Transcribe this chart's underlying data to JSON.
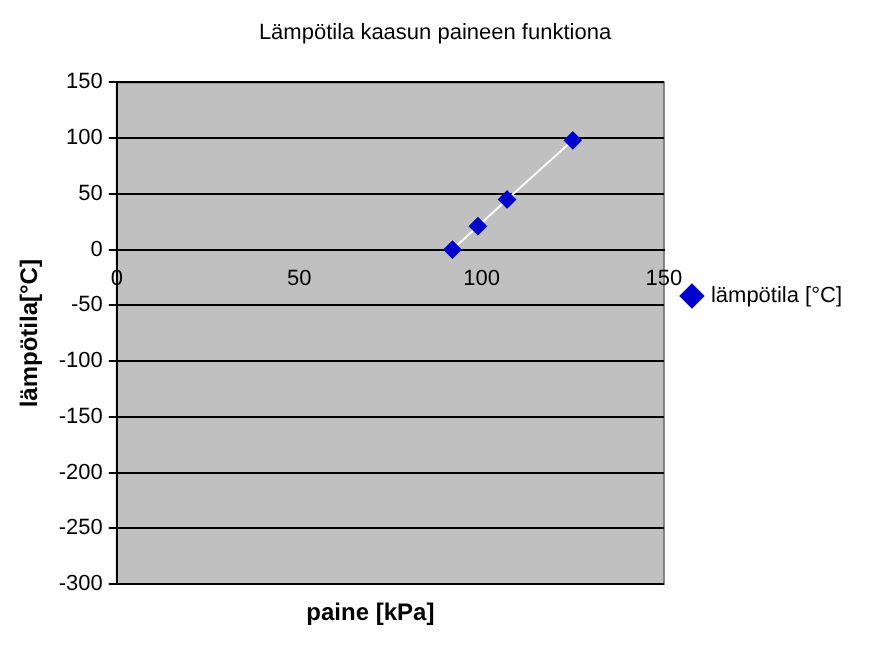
{
  "chart_data": {
    "type": "line",
    "title": "Lämpötila kaasun paineen funktiona",
    "xlabel": "paine [kPa]",
    "ylabel": "lämpötila[°C]",
    "x": [
      92,
      99,
      107,
      125
    ],
    "series": [
      {
        "name": "lämpötila [°C]",
        "color": "#0000cc",
        "values": [
          0,
          21,
          45,
          98
        ]
      }
    ],
    "xlim": [
      0,
      150
    ],
    "xticks": [
      0,
      50,
      100,
      150
    ],
    "ylim": [
      -300,
      150
    ],
    "yticks": [
      -300,
      -250,
      -200,
      -150,
      -100,
      -50,
      0,
      50,
      100,
      150
    ],
    "grid": "y",
    "legend": "right",
    "marker": "diamond"
  }
}
